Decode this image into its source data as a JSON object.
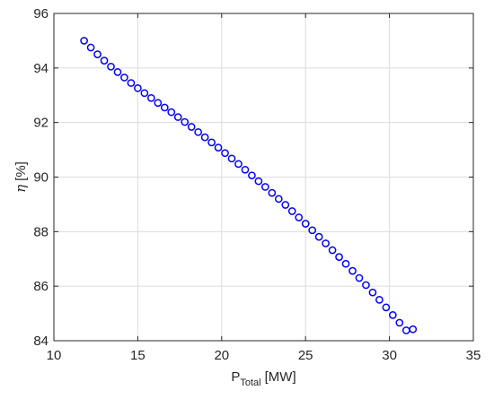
{
  "chart_data": {
    "type": "scatter",
    "xlabel": {
      "main": "P",
      "subscript": "Total",
      "unit": "[MW]"
    },
    "ylabel": {
      "symbol": "η",
      "unit": "[%]"
    },
    "xlim": [
      10,
      35
    ],
    "ylim": [
      84,
      96
    ],
    "xticks": [
      10,
      15,
      20,
      25,
      30,
      35
    ],
    "yticks": [
      84,
      86,
      88,
      90,
      92,
      94,
      96
    ],
    "grid": true,
    "marker": "circle-open",
    "colors": {
      "marker": "#0000ff",
      "grid": "#dcdcdc",
      "axes": "#262626"
    },
    "series": [
      {
        "x": [
          11.8,
          12.2,
          12.6,
          13.0,
          13.4,
          13.8,
          14.2,
          14.6,
          15.0,
          15.4,
          15.8,
          16.2,
          16.6,
          17.0,
          17.4,
          17.8,
          18.2,
          18.6,
          19.0,
          19.4,
          19.8,
          20.2,
          20.6,
          21.0,
          21.4,
          21.8,
          22.2,
          22.6,
          23.0,
          23.4,
          23.8,
          24.2,
          24.6,
          25.0,
          25.4,
          25.8,
          26.2,
          26.6,
          27.0,
          27.4,
          27.8,
          28.2,
          28.6,
          29.0,
          29.4,
          29.8,
          30.2,
          30.6,
          31.0,
          31.4
        ],
        "y": [
          95.0,
          94.75,
          94.5,
          94.27,
          94.05,
          93.85,
          93.65,
          93.45,
          93.26,
          93.08,
          92.9,
          92.72,
          92.55,
          92.38,
          92.2,
          92.02,
          91.84,
          91.65,
          91.46,
          91.27,
          91.08,
          90.88,
          90.68,
          90.48,
          90.27,
          90.06,
          89.85,
          89.64,
          89.42,
          89.2,
          88.98,
          88.75,
          88.52,
          88.29,
          88.05,
          87.81,
          87.57,
          87.32,
          87.07,
          86.82,
          86.56,
          86.3,
          86.04,
          85.77,
          85.5,
          85.22,
          84.94,
          84.66,
          84.38,
          84.42
        ]
      }
    ]
  }
}
